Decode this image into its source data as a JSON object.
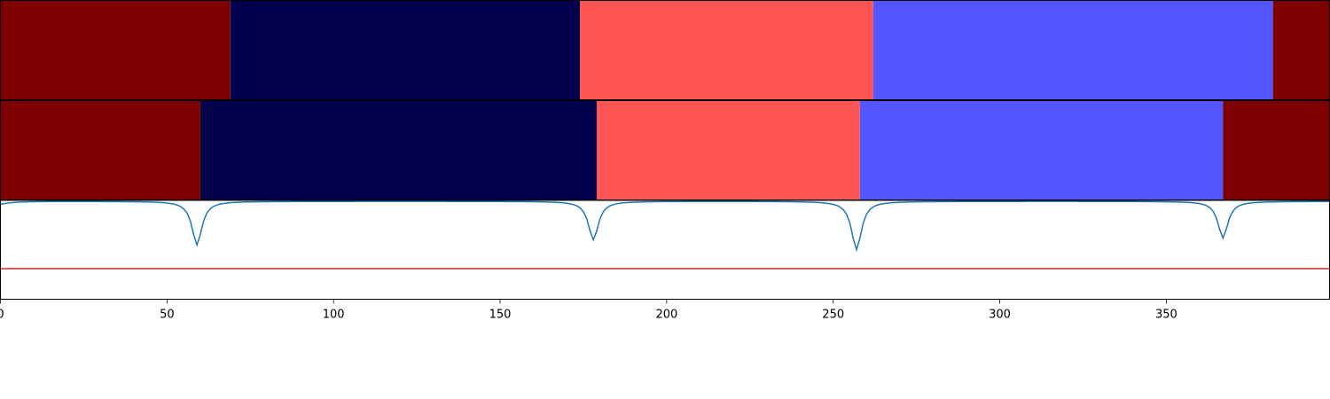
{
  "chart_data": {
    "type": "segmentation_comparison",
    "panels": [
      {
        "type": "bar",
        "segments": [
          {
            "start": 0,
            "end": 69,
            "color": "#7f0000"
          },
          {
            "start": 69,
            "end": 174,
            "color": "#00004c"
          },
          {
            "start": 174,
            "end": 262,
            "color": "#ff5555"
          },
          {
            "start": 262,
            "end": 382,
            "color": "#5555ff"
          },
          {
            "start": 382,
            "end": 399,
            "color": "#7f0000"
          }
        ]
      },
      {
        "type": "bar",
        "segments": [
          {
            "start": 0,
            "end": 60,
            "color": "#7f0000"
          },
          {
            "start": 60,
            "end": 179,
            "color": "#00004c"
          },
          {
            "start": 179,
            "end": 258,
            "color": "#ff5555"
          },
          {
            "start": 258,
            "end": 367,
            "color": "#5555ff"
          },
          {
            "start": 367,
            "end": 399,
            "color": "#7f0000"
          }
        ]
      },
      {
        "type": "line",
        "ylim": [
          0,
          1
        ],
        "series": [
          {
            "color": "#1f77b4",
            "baseline": 0.99,
            "dips": [
              {
                "x": 59,
                "min": 0.55
              },
              {
                "x": 178,
                "min": 0.6
              },
              {
                "x": 257,
                "min": 0.5
              },
              {
                "x": 367,
                "min": 0.62
              }
            ]
          },
          {
            "color": "#d62728",
            "constant": 0.31
          }
        ]
      }
    ],
    "xlim": [
      0,
      399
    ],
    "xticks": [
      0,
      50,
      100,
      150,
      200,
      250,
      300,
      350
    ],
    "xlabel": "",
    "ylabel": "",
    "title": "",
    "grid": false
  }
}
